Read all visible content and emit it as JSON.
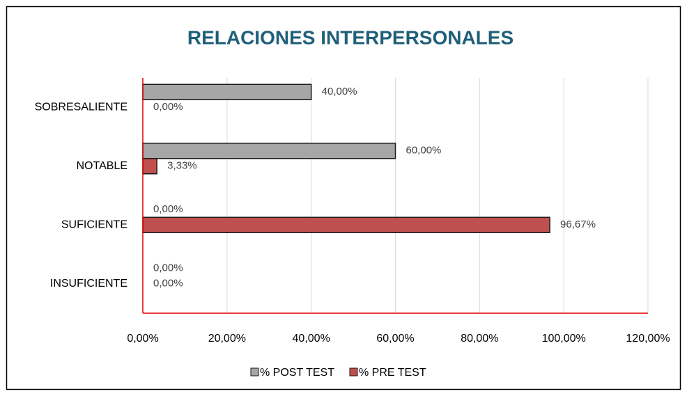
{
  "chart_data": {
    "type": "hbar",
    "title": "RELACIONES INTERPERSONALES",
    "categories": [
      "SOBRESALIENTE",
      "NOTABLE",
      "SUFICIENTE",
      "INSUFICIENTE"
    ],
    "series": [
      {
        "name": "% POST TEST",
        "color": "#a6a6a6",
        "values": [
          40,
          60,
          0,
          0
        ],
        "value_labels": [
          "40,00%",
          "60,00%",
          "0,00%",
          "0,00%"
        ]
      },
      {
        "name": "% PRE TEST",
        "color": "#c0504d",
        "values": [
          0,
          3.33,
          96.67,
          0
        ],
        "value_labels": [
          "0,00%",
          "3,33%",
          "96,67%",
          "0,00%"
        ]
      }
    ],
    "xlim": [
      0,
      120
    ],
    "xticks": [
      {
        "value": 0,
        "label": "0,00%"
      },
      {
        "value": 20,
        "label": "20,00%"
      },
      {
        "value": 40,
        "label": "40,00%"
      },
      {
        "value": 60,
        "label": "60,00%"
      },
      {
        "value": 80,
        "label": "80,00%"
      },
      {
        "value": 100,
        "label": "100,00%"
      },
      {
        "value": 120,
        "label": "120,00%"
      }
    ],
    "grid": true,
    "legend": "bottom"
  }
}
